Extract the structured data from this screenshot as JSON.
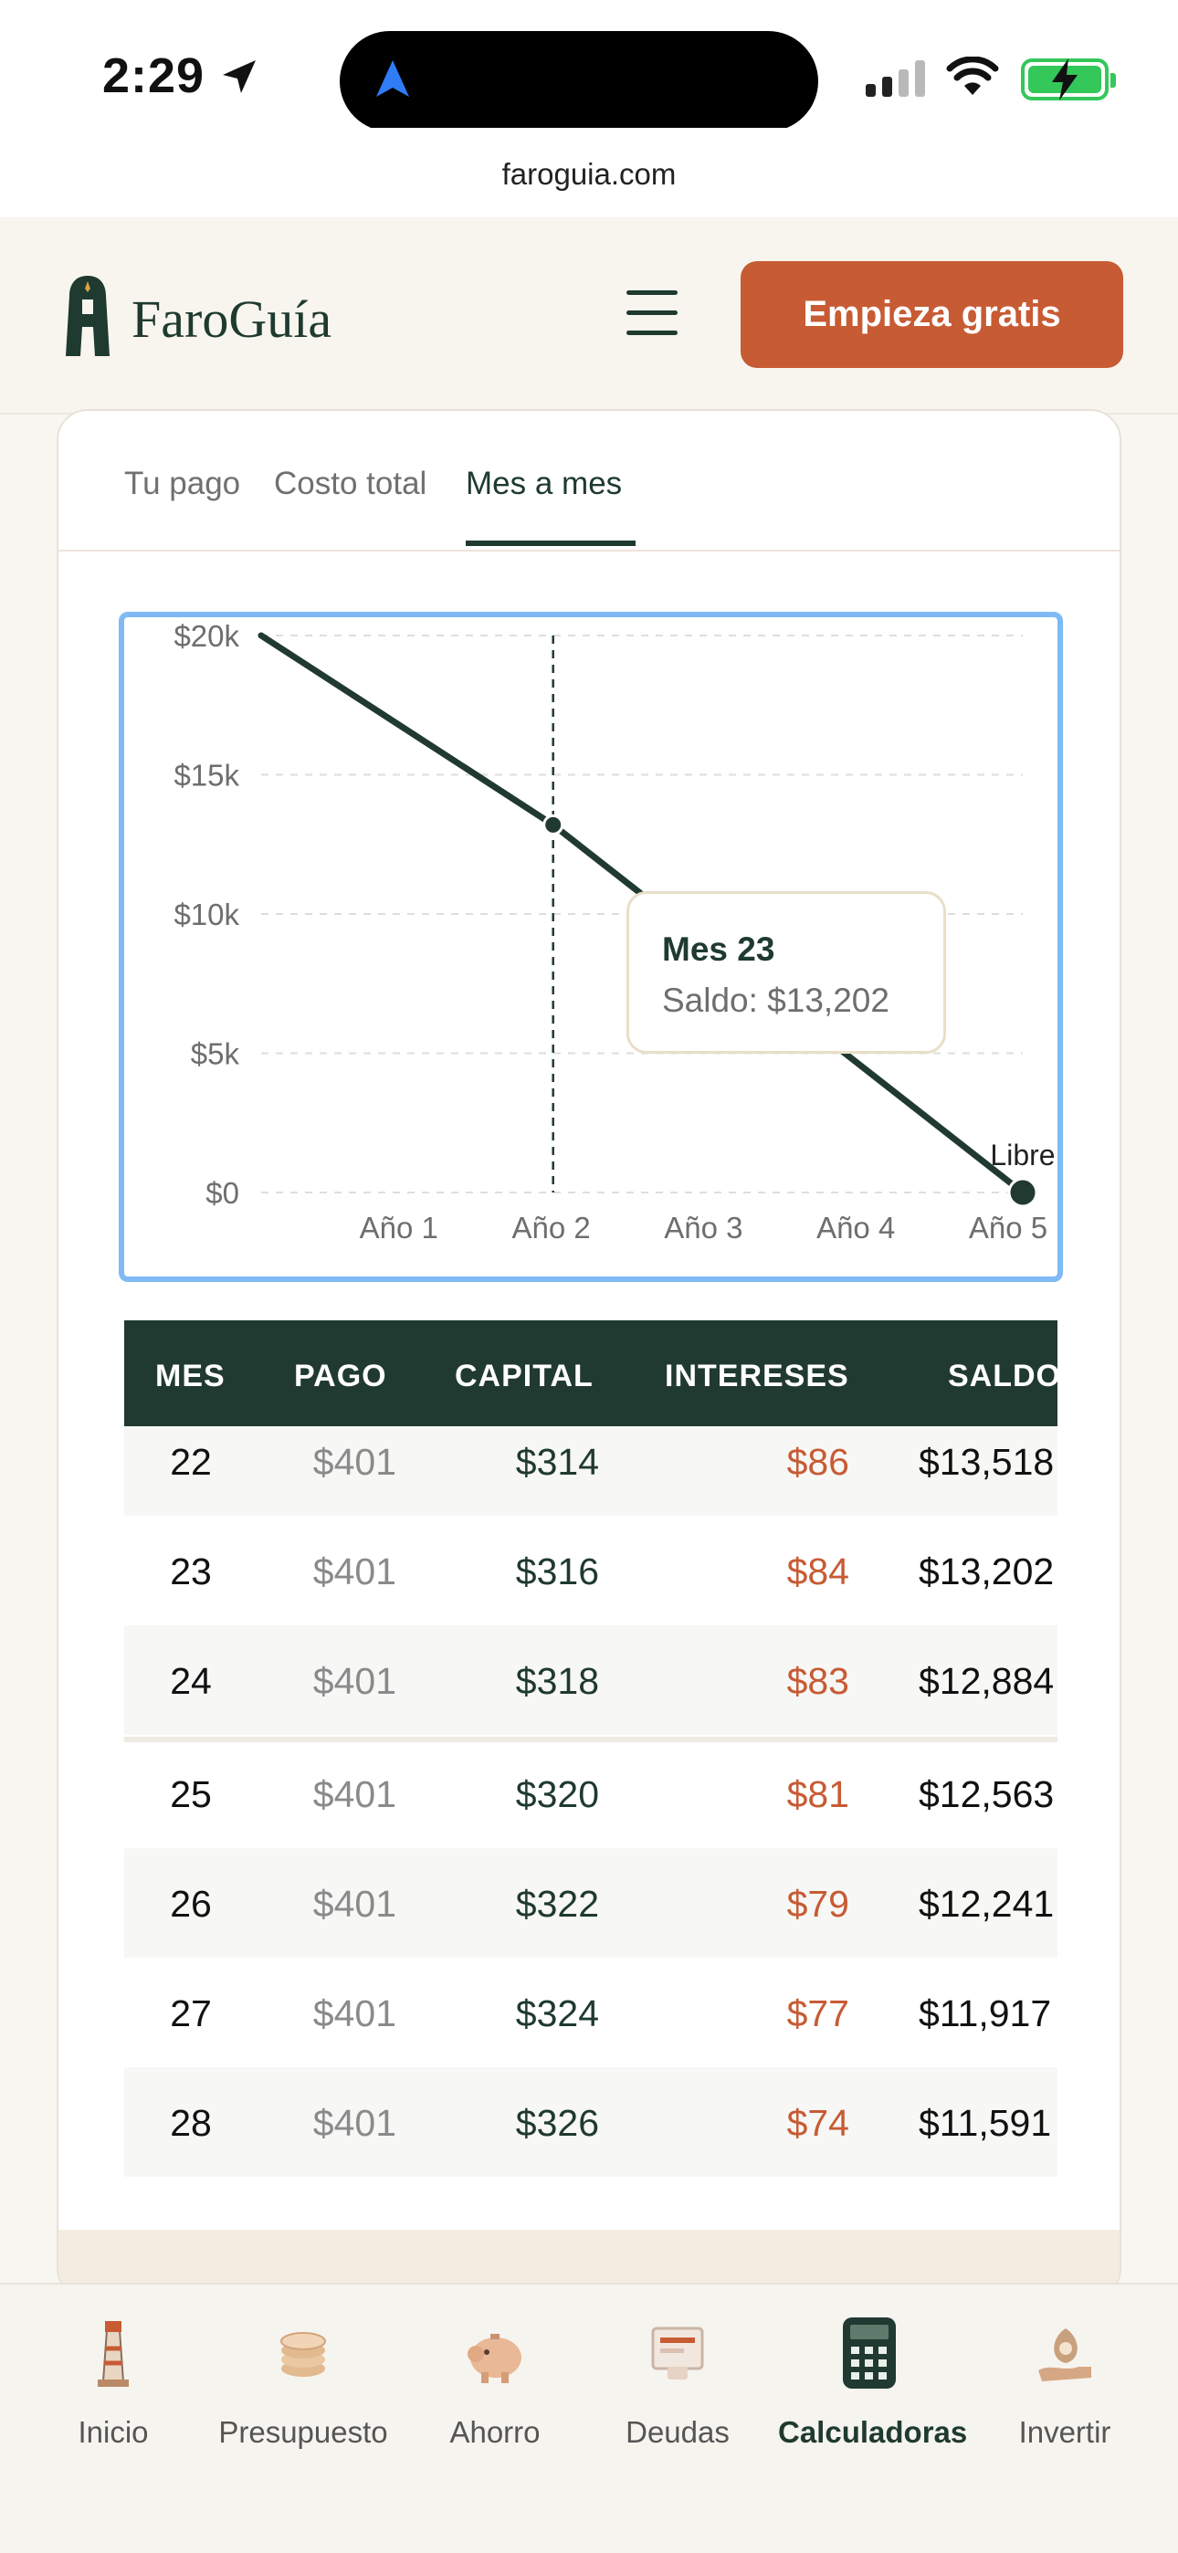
{
  "status_bar": {
    "time": "2:29",
    "url": "faroguia.com"
  },
  "header": {
    "logo_text": "FaroGuía",
    "cta_label": "Empieza gratis"
  },
  "tabs": [
    {
      "label": "Tu pago"
    },
    {
      "label": "Costo total"
    },
    {
      "label": "Mes a mes",
      "active": true
    }
  ],
  "chart_data": {
    "type": "line",
    "x_ticks": [
      "Año 1",
      "Año 2",
      "Año 3",
      "Año 4",
      "Año 5"
    ],
    "y_ticks": [
      "$0",
      "$5k",
      "$10k",
      "$15k",
      "$20k"
    ],
    "ylim": [
      0,
      20000
    ],
    "xlim_months": [
      0,
      60
    ],
    "series": [
      {
        "points": [
          [
            0,
            20000
          ],
          [
            23,
            13202
          ],
          [
            60,
            0
          ]
        ]
      }
    ],
    "highlight": {
      "month": 23,
      "value": 13202
    },
    "end_label": "Libre",
    "tooltip": {
      "title": "Mes 23",
      "value": "Saldo: $13,202"
    },
    "grid": true,
    "line_color": "#213a31"
  },
  "table": {
    "headers": [
      "MES",
      "PAGO",
      "CAPITAL",
      "INTERESES",
      "SALDO"
    ],
    "rows": [
      [
        "22",
        "$401",
        "$314",
        "$86",
        "$13,518"
      ],
      [
        "23",
        "$401",
        "$316",
        "$84",
        "$13,202"
      ],
      [
        "24",
        "$401",
        "$318",
        "$83",
        "$12,884"
      ],
      [
        "25",
        "$401",
        "$320",
        "$81",
        "$12,563"
      ],
      [
        "26",
        "$401",
        "$322",
        "$79",
        "$12,241"
      ],
      [
        "27",
        "$401",
        "$324",
        "$77",
        "$11,917"
      ],
      [
        "28",
        "$401",
        "$326",
        "$74",
        "$11,591"
      ]
    ]
  },
  "bottom_nav": [
    {
      "label": "Inicio",
      "icon": "lighthouse-icon"
    },
    {
      "label": "Presupuesto",
      "icon": "coins-icon"
    },
    {
      "label": "Ahorro",
      "icon": "piggy-bank-icon"
    },
    {
      "label": "Deudas",
      "icon": "card-bill-icon"
    },
    {
      "label": "Calculadoras",
      "icon": "calculator-icon",
      "active": true
    },
    {
      "label": "Invertir",
      "icon": "money-bag-hand-icon"
    }
  ],
  "colors": {
    "brand_green": "#1f3a2f",
    "accent_orange": "#c75b34",
    "focus_blue": "#7fbaf5"
  }
}
